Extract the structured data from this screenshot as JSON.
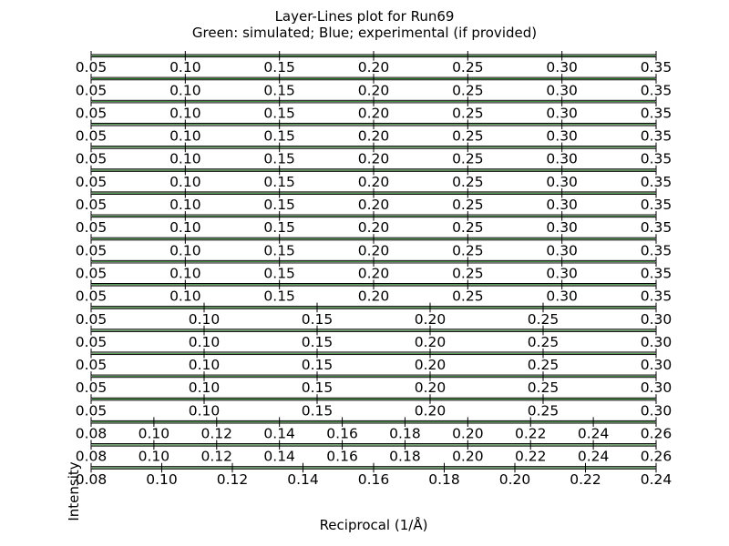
{
  "chart_data": {
    "type": "line",
    "title": "Layer-Lines plot for Run69",
    "subtitle": "Green: simulated; Blue; experimental (if provided)",
    "xlabel": "Reciprocal (1/Å)",
    "ylabel": "Intensity",
    "grid": false,
    "legend": "none",
    "colors": {
      "simulated": "#006400",
      "experimental": "#0000ff",
      "frame": "#000000"
    },
    "panels": [
      {
        "xlim": [
          0.05,
          0.35
        ],
        "ticks": [
          "0.05",
          "0.10",
          "0.15",
          "0.20",
          "0.25",
          "0.30",
          "0.35"
        ]
      },
      {
        "xlim": [
          0.05,
          0.35
        ],
        "ticks": [
          "0.05",
          "0.10",
          "0.15",
          "0.20",
          "0.25",
          "0.30",
          "0.35"
        ]
      },
      {
        "xlim": [
          0.05,
          0.35
        ],
        "ticks": [
          "0.05",
          "0.10",
          "0.15",
          "0.20",
          "0.25",
          "0.30",
          "0.35"
        ]
      },
      {
        "xlim": [
          0.05,
          0.35
        ],
        "ticks": [
          "0.05",
          "0.10",
          "0.15",
          "0.20",
          "0.25",
          "0.30",
          "0.35"
        ]
      },
      {
        "xlim": [
          0.05,
          0.35
        ],
        "ticks": [
          "0.05",
          "0.10",
          "0.15",
          "0.20",
          "0.25",
          "0.30",
          "0.35"
        ]
      },
      {
        "xlim": [
          0.05,
          0.35
        ],
        "ticks": [
          "0.05",
          "0.10",
          "0.15",
          "0.20",
          "0.25",
          "0.30",
          "0.35"
        ]
      },
      {
        "xlim": [
          0.05,
          0.35
        ],
        "ticks": [
          "0.05",
          "0.10",
          "0.15",
          "0.20",
          "0.25",
          "0.30",
          "0.35"
        ]
      },
      {
        "xlim": [
          0.05,
          0.35
        ],
        "ticks": [
          "0.05",
          "0.10",
          "0.15",
          "0.20",
          "0.25",
          "0.30",
          "0.35"
        ]
      },
      {
        "xlim": [
          0.05,
          0.35
        ],
        "ticks": [
          "0.05",
          "0.10",
          "0.15",
          "0.20",
          "0.25",
          "0.30",
          "0.35"
        ]
      },
      {
        "xlim": [
          0.05,
          0.35
        ],
        "ticks": [
          "0.05",
          "0.10",
          "0.15",
          "0.20",
          "0.25",
          "0.30",
          "0.35"
        ]
      },
      {
        "xlim": [
          0.05,
          0.35
        ],
        "ticks": [
          "0.05",
          "0.10",
          "0.15",
          "0.20",
          "0.25",
          "0.30",
          "0.35"
        ]
      },
      {
        "xlim": [
          0.05,
          0.3
        ],
        "ticks": [
          "0.05",
          "0.10",
          "0.15",
          "0.20",
          "0.25",
          "0.30"
        ]
      },
      {
        "xlim": [
          0.05,
          0.3
        ],
        "ticks": [
          "0.05",
          "0.10",
          "0.15",
          "0.20",
          "0.25",
          "0.30"
        ]
      },
      {
        "xlim": [
          0.05,
          0.3
        ],
        "ticks": [
          "0.05",
          "0.10",
          "0.15",
          "0.20",
          "0.25",
          "0.30"
        ]
      },
      {
        "xlim": [
          0.05,
          0.3
        ],
        "ticks": [
          "0.05",
          "0.10",
          "0.15",
          "0.20",
          "0.25",
          "0.30"
        ]
      },
      {
        "xlim": [
          0.05,
          0.3
        ],
        "ticks": [
          "0.05",
          "0.10",
          "0.15",
          "0.20",
          "0.25",
          "0.30"
        ]
      },
      {
        "xlim": [
          0.08,
          0.26
        ],
        "ticks": [
          "0.08",
          "0.10",
          "0.12",
          "0.14",
          "0.16",
          "0.18",
          "0.20",
          "0.22",
          "0.24",
          "0.26"
        ]
      },
      {
        "xlim": [
          0.08,
          0.26
        ],
        "ticks": [
          "0.08",
          "0.10",
          "0.12",
          "0.14",
          "0.16",
          "0.18",
          "0.20",
          "0.22",
          "0.24",
          "0.26"
        ]
      },
      {
        "xlim": [
          0.08,
          0.24
        ],
        "ticks": [
          "0.08",
          "0.10",
          "0.12",
          "0.14",
          "0.16",
          "0.18",
          "0.20",
          "0.22",
          "0.24"
        ]
      }
    ]
  }
}
